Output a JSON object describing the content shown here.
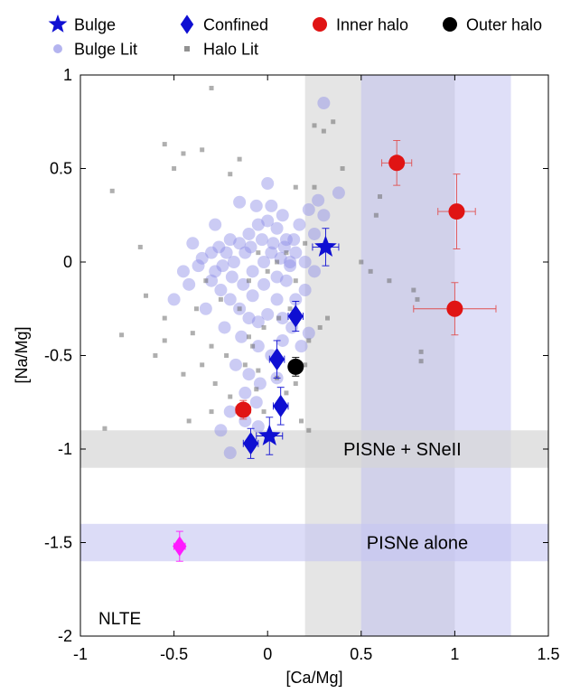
{
  "chart_data": {
    "type": "scatter",
    "xlabel": "[Ca/Mg]",
    "ylabel": "[Na/Mg]",
    "xlim": [
      -1,
      1.5
    ],
    "ylim": [
      -2,
      1
    ],
    "xticks": [
      "-1",
      "-0.5",
      "0",
      "0.5",
      "1",
      "1.5"
    ],
    "yticks": [
      "-2",
      "-1.5",
      "-1",
      "-0.5",
      "0",
      "0.5",
      "1"
    ],
    "xtick_values": [
      -1,
      -0.5,
      0,
      0.5,
      1,
      1.5
    ],
    "ytick_values": [
      -2,
      -1.5,
      -1,
      -0.5,
      0,
      0.5,
      1
    ],
    "grid": false,
    "legend_position": "top",
    "annotation": "NLTE",
    "bands": [
      {
        "orientation": "vertical",
        "x0": 0.2,
        "x1": 1.0,
        "color": "#dcdcdc",
        "opacity": 0.75
      },
      {
        "orientation": "vertical",
        "x0": 0.5,
        "x1": 1.3,
        "color": "#b8b8f0",
        "opacity": 0.45
      },
      {
        "orientation": "horizontal",
        "y0": -1.1,
        "y1": -0.9,
        "color": "#d6d6d6",
        "opacity": 0.7,
        "label": "PISNe + SNeII",
        "label_x": 0.72
      },
      {
        "orientation": "horizontal",
        "y0": -1.6,
        "y1": -1.4,
        "color": "#c4c4f2",
        "opacity": 0.6,
        "label": "PISNe alone",
        "label_x": 0.8
      }
    ],
    "series": [
      {
        "name": "Bulge Lit",
        "marker": "circle",
        "color": "#8c8ce6",
        "opacity": 0.45,
        "size": 7,
        "points": [
          [
            -0.37,
            -0.02
          ],
          [
            -0.28,
            -0.05
          ],
          [
            -0.22,
            0.05
          ],
          [
            -0.15,
            0.1
          ],
          [
            -0.1,
            0.15
          ],
          [
            -0.05,
            0.2
          ],
          [
            0.0,
            0.22
          ],
          [
            0.05,
            0.18
          ],
          [
            0.1,
            0.12
          ],
          [
            0.15,
            0.05
          ],
          [
            0.2,
            0.0
          ],
          [
            0.25,
            -0.05
          ],
          [
            -0.3,
            -0.1
          ],
          [
            -0.25,
            -0.15
          ],
          [
            -0.2,
            -0.2
          ],
          [
            -0.15,
            -0.25
          ],
          [
            -0.1,
            -0.3
          ],
          [
            -0.05,
            -0.32
          ],
          [
            0.0,
            -0.28
          ],
          [
            0.05,
            -0.2
          ],
          [
            0.1,
            -0.1
          ],
          [
            -0.18,
            0.0
          ],
          [
            -0.12,
            0.05
          ],
          [
            -0.08,
            -0.05
          ],
          [
            -0.02,
            0.0
          ],
          [
            0.02,
            0.05
          ],
          [
            0.07,
            0.02
          ],
          [
            0.12,
            -0.02
          ],
          [
            -0.26,
            0.08
          ],
          [
            -0.2,
            0.12
          ],
          [
            -0.06,
            0.3
          ],
          [
            0.02,
            0.3
          ],
          [
            0.08,
            0.25
          ],
          [
            -0.5,
            -0.2
          ],
          [
            -0.42,
            -0.12
          ],
          [
            -0.35,
            0.02
          ],
          [
            -0.33,
            -0.25
          ],
          [
            -0.23,
            -0.35
          ],
          [
            -0.14,
            -0.4
          ],
          [
            -0.05,
            -0.45
          ],
          [
            0.02,
            -0.5
          ],
          [
            0.08,
            -0.42
          ],
          [
            0.13,
            -0.35
          ],
          [
            -0.17,
            -0.55
          ],
          [
            -0.1,
            -0.6
          ],
          [
            -0.04,
            -0.65
          ],
          [
            0.05,
            -0.62
          ],
          [
            -0.12,
            -0.7
          ],
          [
            -0.06,
            -0.75
          ],
          [
            -0.2,
            -0.8
          ],
          [
            -0.25,
            -0.9
          ],
          [
            -0.2,
            -1.02
          ],
          [
            -0.12,
            -0.85
          ],
          [
            -0.05,
            -0.88
          ],
          [
            0.08,
            -0.3
          ],
          [
            0.15,
            -0.2
          ],
          [
            0.2,
            -0.15
          ],
          [
            0.25,
            0.15
          ],
          [
            0.3,
            0.25
          ],
          [
            0.38,
            0.37
          ],
          [
            0.3,
            0.85
          ],
          [
            0.0,
            0.42
          ],
          [
            -0.15,
            0.32
          ],
          [
            -0.28,
            0.2
          ],
          [
            -0.4,
            0.1
          ],
          [
            -0.45,
            -0.05
          ],
          [
            0.18,
            -0.45
          ],
          [
            0.22,
            -0.38
          ],
          [
            0.12,
            0.0
          ],
          [
            0.05,
            -0.08
          ],
          [
            -0.02,
            -0.12
          ],
          [
            -0.08,
            -0.18
          ],
          [
            -0.13,
            -0.12
          ],
          [
            -0.19,
            -0.08
          ],
          [
            -0.24,
            -0.02
          ],
          [
            -0.3,
            0.05
          ],
          [
            0.17,
            0.2
          ],
          [
            0.22,
            0.28
          ],
          [
            0.27,
            0.33
          ],
          [
            -0.09,
            0.08
          ],
          [
            -0.03,
            0.12
          ],
          [
            0.03,
            0.1
          ],
          [
            0.09,
            0.08
          ],
          [
            0.14,
            0.12
          ]
        ]
      },
      {
        "name": "Halo Lit",
        "marker": "square",
        "color": "#6e6e6e",
        "opacity": 0.55,
        "size": 5,
        "points": [
          [
            -0.3,
            0.93
          ],
          [
            -0.55,
            0.63
          ],
          [
            -0.45,
            0.58
          ],
          [
            -0.35,
            0.6
          ],
          [
            -0.2,
            0.47
          ],
          [
            -0.5,
            0.5
          ],
          [
            -0.15,
            0.55
          ],
          [
            -0.83,
            0.38
          ],
          [
            -0.68,
            0.08
          ],
          [
            -0.65,
            -0.18
          ],
          [
            -0.55,
            -0.3
          ],
          [
            -0.6,
            -0.5
          ],
          [
            -0.45,
            -0.6
          ],
          [
            -0.35,
            -0.55
          ],
          [
            -0.28,
            -0.65
          ],
          [
            -0.2,
            -0.72
          ],
          [
            -0.42,
            -0.85
          ],
          [
            -0.3,
            -0.8
          ],
          [
            -0.87,
            -0.89
          ],
          [
            -0.78,
            -0.39
          ],
          [
            -0.55,
            -0.42
          ],
          [
            -0.4,
            -0.38
          ],
          [
            -0.3,
            -0.45
          ],
          [
            -0.22,
            -0.5
          ],
          [
            -0.12,
            -0.55
          ],
          [
            -0.05,
            -0.58
          ],
          [
            0.05,
            -0.62
          ],
          [
            0.1,
            -0.7
          ],
          [
            0.15,
            -0.65
          ],
          [
            0.2,
            -0.55
          ],
          [
            -0.1,
            -0.4
          ],
          [
            -0.02,
            -0.35
          ],
          [
            0.06,
            -0.3
          ],
          [
            0.12,
            -0.25
          ],
          [
            -0.06,
            -0.68
          ],
          [
            -0.02,
            -0.8
          ],
          [
            0.08,
            -0.78
          ],
          [
            0.3,
            0.7
          ],
          [
            0.25,
            0.73
          ],
          [
            0.35,
            0.75
          ],
          [
            0.4,
            0.5
          ],
          [
            0.25,
            0.4
          ],
          [
            0.15,
            0.4
          ],
          [
            -0.1,
            -0.1
          ],
          [
            0.0,
            -0.05
          ],
          [
            0.05,
            0.0
          ],
          [
            0.1,
            0.05
          ],
          [
            -0.05,
            0.05
          ],
          [
            0.15,
            -0.1
          ],
          [
            0.2,
            0.1
          ],
          [
            0.5,
            0.0
          ],
          [
            0.55,
            -0.05
          ],
          [
            0.58,
            0.25
          ],
          [
            0.6,
            0.35
          ],
          [
            0.65,
            -0.1
          ],
          [
            0.78,
            -0.15
          ],
          [
            0.8,
            -0.2
          ],
          [
            0.82,
            -0.48
          ],
          [
            0.82,
            -0.53
          ],
          [
            0.22,
            -0.42
          ],
          [
            0.28,
            -0.35
          ],
          [
            0.32,
            -0.3
          ],
          [
            -0.15,
            -0.25
          ],
          [
            -0.25,
            -0.2
          ],
          [
            -0.08,
            -0.45
          ],
          [
            0.18,
            -0.85
          ],
          [
            0.22,
            -0.9
          ],
          [
            -0.33,
            -0.1
          ],
          [
            -0.38,
            -0.25
          ]
        ]
      },
      {
        "name": "Bulge",
        "marker": "star",
        "color": "#0f0fd2",
        "size": 13,
        "points": [
          [
            0.31,
            0.08
          ],
          [
            0.01,
            -0.93
          ]
        ],
        "xerr": [
          0.07,
          0.07
        ],
        "yerr": [
          0.1,
          0.1
        ]
      },
      {
        "name": "Confined",
        "marker": "diamond",
        "color": "#0f0fd2",
        "size": 10,
        "points": [
          [
            0.15,
            -0.29
          ],
          [
            0.05,
            -0.52
          ],
          [
            0.07,
            -0.77
          ],
          [
            -0.09,
            -0.97
          ]
        ],
        "xerr": [
          0.04,
          0.04,
          0.04,
          0.04
        ],
        "yerr": [
          0.08,
          0.1,
          0.1,
          0.08
        ]
      },
      {
        "name": "Inner halo",
        "marker": "circle",
        "color": "#e01414",
        "size": 9,
        "points": [
          [
            0.69,
            0.53
          ],
          [
            1.01,
            0.27
          ],
          [
            1.0,
            -0.25
          ],
          [
            -0.13,
            -0.79
          ]
        ],
        "xerr": [
          0.08,
          0.1,
          0.22,
          0.04
        ],
        "yerr": [
          0.12,
          0.2,
          0.14,
          0.05
        ]
      },
      {
        "name": "Outer halo",
        "marker": "circle",
        "color": "#000000",
        "size": 9,
        "points": [
          [
            0.15,
            -0.56
          ]
        ],
        "xerr": [
          0.03
        ],
        "yerr": [
          0.05
        ]
      },
      {
        "name": "",
        "marker": "diamond",
        "color": "#ff1aff",
        "size": 9,
        "points": [
          [
            -0.47,
            -1.52
          ]
        ],
        "xerr": [
          0.03
        ],
        "yerr": [
          0.08
        ]
      }
    ],
    "legend": [
      "Bulge",
      "Confined",
      "Inner halo",
      "Outer halo",
      "Bulge Lit",
      "Halo Lit"
    ]
  }
}
